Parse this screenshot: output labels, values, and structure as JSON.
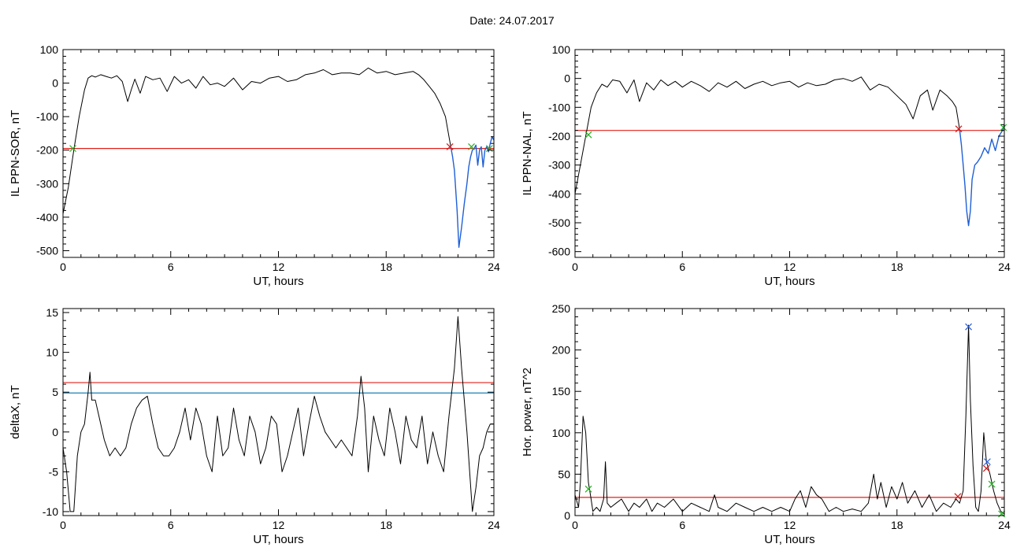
{
  "page_title": "Date:  24.07.2017",
  "colors": {
    "data": "#000000",
    "substorm": "#1f5fd6",
    "threshold_red": "#e0201a",
    "threshold_blue": "#1a7fb5",
    "marker_green": "#22b21f",
    "marker_red": "#d11a1a",
    "marker_blue": "#2a5fdc"
  },
  "chart_data": [
    {
      "type": "line",
      "title": "",
      "xlabel": "UT, hours",
      "ylabel": "IL PPN-SOR, nT",
      "xlim": [
        0,
        24
      ],
      "ylim": [
        -520,
        100
      ],
      "xticks": [
        "0",
        "6",
        "12",
        "18",
        "24"
      ],
      "yticks": [
        "100",
        "0",
        "-100",
        "-200",
        "-300",
        "-400",
        "-500"
      ],
      "ytick_values": [
        100,
        0,
        -100,
        -200,
        -300,
        -400,
        -500
      ],
      "series": [
        {
          "role": "main",
          "x": [
            0,
            0.3,
            0.6,
            0.9,
            1.2,
            1.4,
            1.6,
            1.8,
            2.1,
            2.4,
            2.7,
            3.0,
            3.3,
            3.6,
            3.8,
            4.0,
            4.3,
            4.6,
            5.0,
            5.4,
            5.8,
            6.2,
            6.6,
            7.0,
            7.4,
            7.8,
            8.2,
            8.6,
            9.0,
            9.5,
            10.0,
            10.5,
            11.0,
            11.5,
            12.0,
            12.5,
            13.0,
            13.5,
            14.0,
            14.5,
            15.0,
            15.5,
            16.0,
            16.5,
            17.0,
            17.5,
            18.0,
            18.5,
            19.0,
            19.5,
            19.8,
            20.1,
            20.4,
            20.7,
            21.0,
            21.3,
            21.5,
            21.6
          ],
          "y": [
            -390,
            -310,
            -200,
            -100,
            -20,
            15,
            22,
            18,
            25,
            20,
            15,
            22,
            5,
            -55,
            -20,
            12,
            -30,
            20,
            10,
            15,
            -25,
            20,
            0,
            10,
            -15,
            20,
            -5,
            0,
            -10,
            15,
            -20,
            5,
            0,
            15,
            20,
            5,
            10,
            25,
            30,
            40,
            25,
            30,
            30,
            25,
            45,
            30,
            35,
            25,
            30,
            35,
            25,
            10,
            -10,
            -30,
            -60,
            -100,
            -160,
            -190
          ]
        },
        {
          "role": "substorm",
          "x": [
            21.6,
            21.7,
            21.8,
            21.95,
            22.05,
            22.2,
            22.35,
            22.5,
            22.6,
            22.7,
            22.8,
            22.9,
            23.0,
            23.1,
            23.2,
            23.3,
            23.4,
            23.5,
            23.6,
            23.7,
            23.8,
            23.9,
            24.0
          ],
          "y": [
            -190,
            -220,
            -260,
            -380,
            -490,
            -430,
            -360,
            -300,
            -250,
            -220,
            -200,
            -195,
            -185,
            -245,
            -200,
            -190,
            -250,
            -200,
            -190,
            -205,
            -180,
            -160,
            -170
          ]
        }
      ],
      "thresholds": [
        {
          "y": -195,
          "color_key": "threshold_red"
        }
      ],
      "markers": [
        {
          "x": 0.55,
          "y": -195,
          "color_key": "marker_green"
        },
        {
          "x": 21.55,
          "y": -190,
          "color_key": "marker_red"
        },
        {
          "x": 22.75,
          "y": -190,
          "color_key": "marker_green"
        },
        {
          "x": 23.75,
          "y": -195,
          "color_key": "marker_green"
        }
      ]
    },
    {
      "type": "line",
      "title": "",
      "xlabel": "UT, hours",
      "ylabel": "IL PPN-NAL, nT",
      "xlim": [
        0,
        24
      ],
      "ylim": [
        -620,
        100
      ],
      "xticks": [
        "0",
        "6",
        "12",
        "18",
        "24"
      ],
      "yticks": [
        "100",
        "0",
        "-100",
        "-200",
        "-300",
        "-400",
        "-500",
        "-600"
      ],
      "ytick_values": [
        100,
        0,
        -100,
        -200,
        -300,
        -400,
        -500,
        -600
      ],
      "series": [
        {
          "role": "main",
          "x": [
            0,
            0.3,
            0.6,
            0.9,
            1.2,
            1.5,
            1.8,
            2.1,
            2.5,
            2.9,
            3.3,
            3.6,
            4.0,
            4.4,
            4.8,
            5.2,
            5.6,
            6.0,
            6.5,
            7.0,
            7.5,
            8.0,
            8.5,
            9.0,
            9.5,
            10.0,
            10.5,
            11.0,
            11.5,
            12.0,
            12.5,
            13.0,
            13.5,
            14.0,
            14.5,
            15.0,
            15.5,
            16.0,
            16.5,
            17.0,
            17.5,
            18.0,
            18.5,
            18.9,
            19.3,
            19.7,
            20.0,
            20.4,
            20.8,
            21.1,
            21.3,
            21.5
          ],
          "y": [
            -400,
            -300,
            -200,
            -100,
            -50,
            -20,
            -30,
            -5,
            -10,
            -50,
            -5,
            -80,
            -15,
            -40,
            -5,
            -25,
            -10,
            -30,
            -10,
            -25,
            -45,
            -15,
            -30,
            -10,
            -35,
            -20,
            -10,
            -25,
            -15,
            -10,
            -30,
            -15,
            -25,
            -20,
            -5,
            0,
            -10,
            5,
            -40,
            -20,
            -30,
            -60,
            -90,
            -140,
            -60,
            -40,
            -110,
            -40,
            -60,
            -80,
            -100,
            -175
          ]
        },
        {
          "role": "substorm",
          "x": [
            21.5,
            21.6,
            21.7,
            21.8,
            21.9,
            22.0,
            22.1,
            22.2,
            22.35,
            22.5,
            22.7,
            22.9,
            23.1,
            23.3,
            23.5,
            23.7,
            23.9,
            24.0
          ],
          "y": [
            -175,
            -230,
            -300,
            -370,
            -460,
            -510,
            -460,
            -350,
            -300,
            -290,
            -270,
            -240,
            -260,
            -210,
            -250,
            -200,
            -180,
            -160
          ]
        }
      ],
      "thresholds": [
        {
          "y": -180,
          "color_key": "threshold_red"
        }
      ],
      "markers": [
        {
          "x": 0.75,
          "y": -195,
          "color_key": "marker_green"
        },
        {
          "x": 21.45,
          "y": -175,
          "color_key": "marker_red"
        },
        {
          "x": 23.95,
          "y": -170,
          "color_key": "marker_green"
        }
      ]
    },
    {
      "type": "line",
      "title": "",
      "xlabel": "UT, hours",
      "ylabel": "deltaX, nT",
      "xlim": [
        0,
        24
      ],
      "ylim": [
        -10.5,
        15.5
      ],
      "xticks": [
        "0",
        "6",
        "12",
        "18",
        "24"
      ],
      "yticks": [
        "15",
        "10",
        "5",
        "0",
        "-5",
        "-10"
      ],
      "ytick_values": [
        15,
        10,
        5,
        0,
        -5,
        -10
      ],
      "series": [
        {
          "role": "main",
          "x": [
            0,
            0.2,
            0.4,
            0.6,
            0.8,
            1.0,
            1.2,
            1.4,
            1.5,
            1.6,
            1.8,
            2.0,
            2.3,
            2.6,
            2.9,
            3.2,
            3.5,
            3.8,
            4.1,
            4.4,
            4.7,
            5.0,
            5.3,
            5.6,
            5.9,
            6.2,
            6.5,
            6.8,
            7.1,
            7.4,
            7.7,
            8.0,
            8.3,
            8.6,
            8.9,
            9.2,
            9.5,
            9.8,
            10.1,
            10.4,
            10.7,
            11.0,
            11.3,
            11.6,
            11.9,
            12.2,
            12.5,
            12.8,
            13.1,
            13.4,
            13.7,
            14.0,
            14.3,
            14.6,
            14.9,
            15.2,
            15.5,
            15.8,
            16.1,
            16.4,
            16.6,
            16.8,
            17.0,
            17.3,
            17.6,
            17.9,
            18.2,
            18.5,
            18.8,
            19.1,
            19.4,
            19.7,
            20.0,
            20.3,
            20.6,
            20.9,
            21.2,
            21.5,
            21.8,
            22.0,
            22.2,
            22.5,
            22.8,
            23.0,
            23.2,
            23.4,
            23.6,
            23.8,
            24.0
          ],
          "y": [
            -2,
            -5,
            -10,
            -10,
            -3,
            0,
            1,
            5,
            7.5,
            4,
            4,
            2,
            -1,
            -3,
            -2,
            -3,
            -2,
            1,
            3,
            4,
            4.5,
            1,
            -2,
            -3,
            -3,
            -2,
            0,
            3,
            -1,
            3,
            1,
            -3,
            -5,
            2,
            -3,
            -2,
            3,
            -1,
            -3,
            2,
            0,
            -4,
            -2,
            2,
            1,
            -5,
            -3,
            0,
            3,
            -3,
            1,
            4.5,
            2,
            0,
            -1,
            -2,
            -1,
            -2,
            -3,
            2,
            7,
            3,
            -5,
            2,
            -1,
            -3,
            3,
            0,
            -4,
            2,
            -1,
            -2,
            2,
            -4,
            0,
            -3,
            -5,
            2,
            8,
            14.5,
            8,
            0,
            -10,
            -7,
            -3,
            -2,
            0,
            1,
            1
          ]
        }
      ],
      "thresholds": [
        {
          "y": 6.2,
          "color_key": "threshold_red"
        },
        {
          "y": 4.9,
          "color_key": "threshold_blue"
        }
      ],
      "markers": []
    },
    {
      "type": "line",
      "title": "",
      "xlabel": "UT, hours",
      "ylabel": "Hor. power, nT^2",
      "xlim": [
        0,
        24
      ],
      "ylim": [
        0,
        250
      ],
      "xticks": [
        "0",
        "6",
        "12",
        "18",
        "24"
      ],
      "yticks": [
        "250",
        "200",
        "150",
        "100",
        "50",
        "0"
      ],
      "ytick_values": [
        250,
        200,
        150,
        100,
        50,
        0
      ],
      "series": [
        {
          "role": "main",
          "x": [
            0,
            0.2,
            0.3,
            0.45,
            0.6,
            0.75,
            0.9,
            1.0,
            1.2,
            1.4,
            1.6,
            1.7,
            1.8,
            2.0,
            2.3,
            2.6,
            3.0,
            3.3,
            3.6,
            4.0,
            4.3,
            4.6,
            5.0,
            5.5,
            6.0,
            6.5,
            7.0,
            7.5,
            7.8,
            8.0,
            8.5,
            9.0,
            9.5,
            10.0,
            10.5,
            11.0,
            11.5,
            12.0,
            12.3,
            12.6,
            12.9,
            13.2,
            13.5,
            13.8,
            14.2,
            14.6,
            15.0,
            15.5,
            16.0,
            16.4,
            16.7,
            16.9,
            17.1,
            17.4,
            17.7,
            18.0,
            18.3,
            18.6,
            19.0,
            19.4,
            19.8,
            20.2,
            20.6,
            21.0,
            21.3,
            21.5,
            21.7,
            21.85,
            22.0,
            22.1,
            22.25,
            22.4,
            22.55,
            22.7,
            22.85,
            23.0,
            23.2,
            23.4,
            23.6,
            23.8,
            24.0
          ],
          "y": [
            25,
            10,
            40,
            120,
            100,
            40,
            20,
            5,
            10,
            5,
            20,
            65,
            15,
            10,
            15,
            20,
            5,
            15,
            10,
            20,
            5,
            15,
            10,
            20,
            5,
            15,
            10,
            5,
            25,
            10,
            5,
            15,
            10,
            5,
            10,
            5,
            10,
            5,
            20,
            30,
            10,
            35,
            25,
            20,
            5,
            10,
            5,
            8,
            5,
            15,
            50,
            20,
            40,
            10,
            35,
            20,
            40,
            15,
            30,
            10,
            25,
            5,
            15,
            10,
            20,
            15,
            30,
            120,
            230,
            140,
            60,
            10,
            5,
            30,
            100,
            65,
            50,
            30,
            15,
            5,
            2
          ]
        }
      ],
      "thresholds": [
        {
          "y": 22,
          "color_key": "threshold_red"
        }
      ],
      "markers": [
        {
          "x": 0.75,
          "y": 32,
          "color_key": "marker_green"
        },
        {
          "x": 21.4,
          "y": 23,
          "color_key": "marker_red"
        },
        {
          "x": 22.0,
          "y": 228,
          "color_key": "marker_blue"
        },
        {
          "x": 23.05,
          "y": 65,
          "color_key": "marker_blue"
        },
        {
          "x": 23.0,
          "y": 57,
          "color_key": "marker_red"
        },
        {
          "x": 23.3,
          "y": 38,
          "color_key": "marker_green"
        },
        {
          "x": 23.85,
          "y": 2,
          "color_key": "marker_green"
        }
      ]
    }
  ]
}
